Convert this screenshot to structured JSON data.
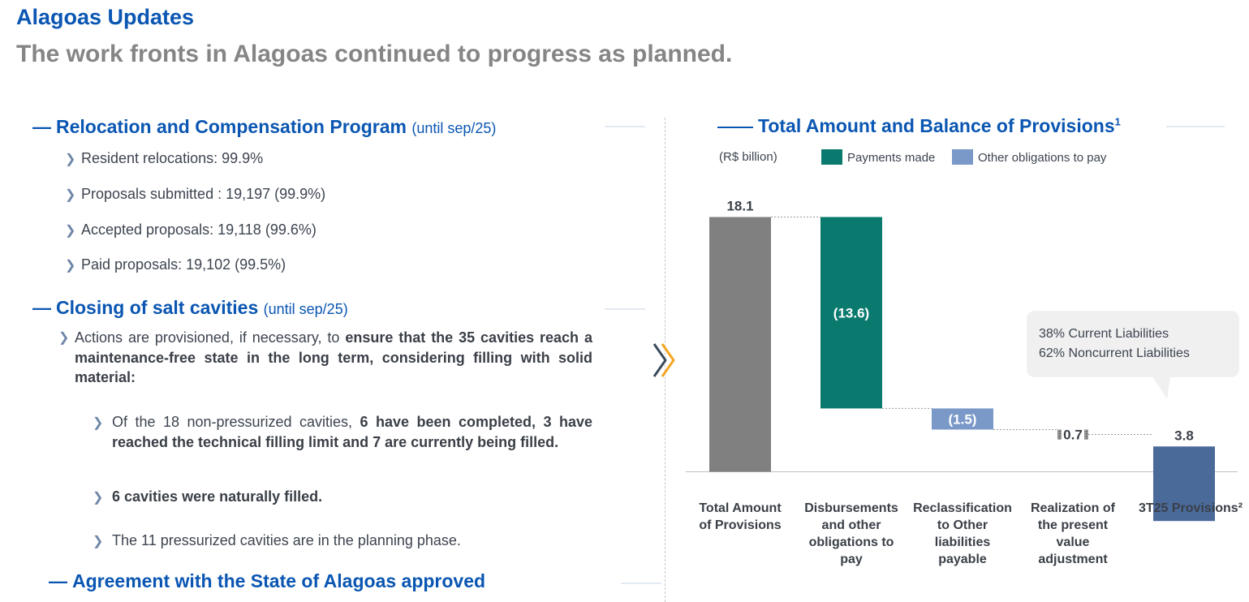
{
  "header": {
    "title": "Alagoas Updates",
    "subtitle": "The work fronts in Alagoas continued to progress as planned."
  },
  "relocation": {
    "title": "Relocation and Compensation  Program",
    "suffix": "(until sep/25)",
    "items": [
      "Resident relocations: 99.9%",
      "Proposals submitted : 19,197 (99.9%)",
      "Accepted proposals: 19,118 (99.6%)",
      "Paid proposals: 19,102 (99.5%)"
    ]
  },
  "cavities": {
    "title": "Closing of salt cavities",
    "suffix": "(until sep/25)",
    "intro_plain": "Actions are provisioned, if necessary, to ",
    "intro_bold": "ensure that the 35 cavities reach a maintenance-free state in the long term, considering filling with solid material:",
    "sub1_plain": "Of the 18 non-pressurized cavities, ",
    "sub1_bold": "6 have been completed,  3 have reached the technical filling limit and 7 are currently being filled.",
    "sub2_bold": "6 cavities were naturally filled.",
    "sub3_plain": "The 11 pressurized cavities are in the planning phase."
  },
  "agreement": {
    "title": "Agreement with the State of Alagoas approved"
  },
  "chart_section": {
    "title": "Total Amount and Balance of Provisions",
    "title_sup": "1",
    "unit": "(R$ billion)",
    "legend": [
      {
        "label": "Payments made",
        "color": "#0a7a6e"
      },
      {
        "label": "Other obligations to pay",
        "color": "#7a98c8"
      }
    ],
    "callout": {
      "line1": "38% Current Liabilities",
      "line2": "62% Noncurrent Liabilities"
    }
  },
  "chart_data": {
    "type": "bar",
    "subtype": "waterfall",
    "title": "Total Amount and Balance of Provisions",
    "ylabel": "(R$ billion)",
    "categories": [
      "Total Amount of Provisions",
      "Disbursements and other obligations to pay",
      "Reclassification to Other liabilities payable",
      "Realization of the present value adjustment",
      "3T25 Provisions²"
    ],
    "category_lines": [
      [
        "Total Amount",
        "of Provisions"
      ],
      [
        "Disbursements",
        "and other",
        "obligations to",
        "pay"
      ],
      [
        "Reclassification",
        "to Other",
        "liabilities",
        "payable"
      ],
      [
        "Realization of",
        "the present",
        "value",
        "adjustment"
      ],
      [
        "3T25 Provisions²"
      ]
    ],
    "values": [
      18.1,
      -13.6,
      -1.5,
      0.7,
      3.8
    ],
    "value_labels": [
      "18.1",
      "(13.6)",
      "(1.5)",
      "0.7",
      "3.8"
    ],
    "bar_kinds": [
      "total",
      "delta",
      "delta",
      "delta",
      "total"
    ],
    "colors": [
      "#808080",
      "#0a7a6e",
      "#7a98c8",
      "#808080",
      "#4a6a9a"
    ],
    "legend_position": "top",
    "grid": false
  }
}
